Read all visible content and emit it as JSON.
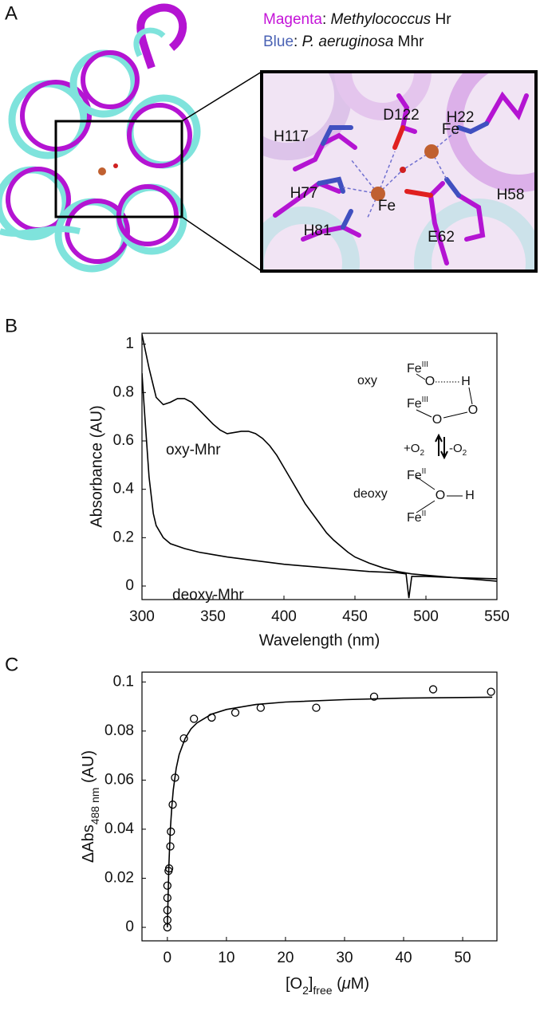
{
  "panel_a": {
    "label": "A",
    "legend": [
      [
        "Magenta",
        ": ",
        "Methylococcus",
        " Hr"
      ],
      [
        "Blue",
        ": ",
        "P. aeruginosa",
        " Mhr"
      ]
    ],
    "residues": [
      "D122",
      "H22",
      "H117",
      "Fe",
      "H77",
      "Fe",
      "H58",
      "H81",
      "E62"
    ]
  },
  "chart_data": [
    {
      "type": "line",
      "panel_label": "B",
      "x_label": "Wavelength (nm)",
      "y_label": "Absorbance (AU)",
      "xlim": [
        300,
        550
      ],
      "ylim": [
        -0.056,
        1.045
      ],
      "xticks": [
        300,
        350,
        400,
        450,
        500,
        550
      ],
      "yticks": [
        0,
        0.2,
        0.4,
        0.6,
        0.8,
        1
      ],
      "series": [
        {
          "name": "oxy-Mhr",
          "color": "#000000",
          "x": [
            300,
            305,
            310,
            315,
            320,
            325,
            330,
            335,
            340,
            345,
            350,
            355,
            360,
            365,
            370,
            375,
            380,
            385,
            390,
            395,
            400,
            405,
            410,
            415,
            420,
            425,
            430,
            435,
            440,
            445,
            450,
            460,
            470,
            480,
            490,
            500,
            510,
            520,
            530,
            540,
            550
          ],
          "values": [
            1.04,
            0.9,
            0.78,
            0.75,
            0.76,
            0.775,
            0.775,
            0.76,
            0.73,
            0.7,
            0.67,
            0.645,
            0.63,
            0.635,
            0.64,
            0.64,
            0.63,
            0.61,
            0.58,
            0.54,
            0.49,
            0.44,
            0.39,
            0.34,
            0.3,
            0.26,
            0.22,
            0.19,
            0.165,
            0.14,
            0.12,
            0.095,
            0.075,
            0.06,
            0.05,
            0.045,
            0.04,
            0.035,
            0.03,
            0.025,
            0.02
          ]
        },
        {
          "name": "deoxy-Mhr",
          "color": "#000000",
          "x": [
            300,
            302,
            305,
            308,
            310,
            315,
            320,
            330,
            340,
            350,
            360,
            380,
            400,
            420,
            440,
            460,
            480,
            486,
            488,
            490,
            500,
            520,
            550
          ],
          "values": [
            0.88,
            0.7,
            0.45,
            0.3,
            0.25,
            0.2,
            0.175,
            0.155,
            0.14,
            0.13,
            0.12,
            0.105,
            0.09,
            0.08,
            0.07,
            0.06,
            0.055,
            0.05,
            -0.05,
            0.04,
            0.04,
            0.035,
            0.03
          ]
        }
      ],
      "scheme": {
        "state_oxy": "oxy",
        "state_deoxy": "deoxy",
        "fe": "Fe",
        "fe3": "III",
        "fe2": "II",
        "o": "O",
        "h": "H",
        "plus": "+O",
        "minus": "-O",
        "two": "2"
      }
    },
    {
      "type": "scatter",
      "panel_label": "C",
      "x_label": [
        "[O",
        "2",
        "]",
        "free",
        " (",
        "μ",
        "M)"
      ],
      "y_label": [
        "ΔAbs",
        "488 nm",
        " (AU)"
      ],
      "xlim": [
        -4.3,
        55.8
      ],
      "ylim": [
        -0.0055,
        0.104
      ],
      "xticks": [
        0,
        10,
        20,
        30,
        40,
        50
      ],
      "yticks": [
        0,
        0.02,
        0.04,
        0.06,
        0.08,
        0.1
      ],
      "points": {
        "color": "#000000",
        "x": [
          0,
          0,
          0,
          0,
          0,
          0.2,
          0.3,
          0.5,
          0.6,
          0.9,
          1.3,
          2.8,
          4.5,
          7.5,
          11.5,
          15.8,
          25.2,
          35,
          45,
          54.8
        ],
        "y": [
          0,
          0.003,
          0.007,
          0.012,
          0.017,
          0.023,
          0.024,
          0.033,
          0.039,
          0.05,
          0.061,
          0.077,
          0.085,
          0.0855,
          0.0875,
          0.0895,
          0.0895,
          0.094,
          0.097,
          0.096
        ]
      },
      "fit": {
        "color": "#000000",
        "x": [
          0,
          0.25,
          0.5,
          0.75,
          1,
          1.5,
          2,
          3,
          4,
          5,
          7.5,
          10,
          15,
          20,
          30,
          40,
          55
        ],
        "values": [
          0,
          0.025,
          0.0396,
          0.0491,
          0.0559,
          0.0648,
          0.0704,
          0.077,
          0.0809,
          0.0833,
          0.0869,
          0.0888,
          0.0908,
          0.0918,
          0.0928,
          0.0934,
          0.0938
        ]
      }
    }
  ]
}
